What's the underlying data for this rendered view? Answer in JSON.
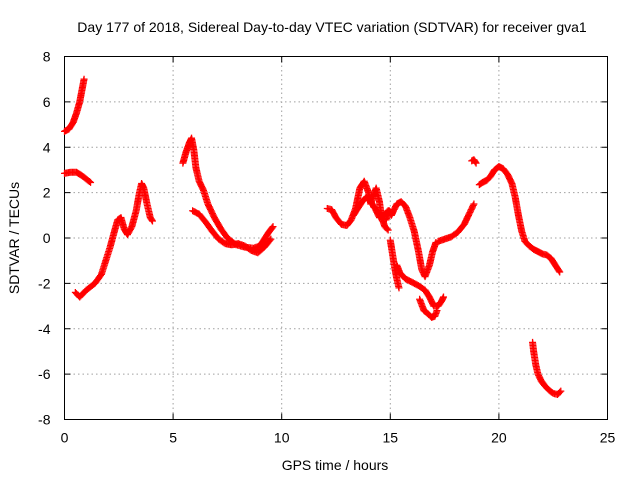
{
  "chart_data": {
    "type": "scatter",
    "title": "Day 177 of 2018, Sidereal Day-to-day VTEC variation (SDTVAR) for receiver gva1",
    "xlabel": "GPS time / hours",
    "ylabel": "SDTVAR / TECUs",
    "xlim": [
      0,
      25
    ],
    "ylim": [
      -8,
      8
    ],
    "xticks": [
      0,
      5,
      10,
      15,
      20,
      25
    ],
    "yticks": [
      -8,
      -6,
      -4,
      -2,
      0,
      2,
      4,
      6,
      8
    ],
    "xtick_labels": [
      "0",
      "5",
      "10",
      "15",
      "20",
      "25"
    ],
    "ytick_labels": [
      "-8",
      "-6",
      "-4",
      "-2",
      "0",
      "2",
      "4",
      "6",
      "8"
    ],
    "grid": true,
    "marker": "plus",
    "color": "#ff0000",
    "series": [
      {
        "name": "s1",
        "points": [
          [
            0.0,
            4.7
          ],
          [
            0.2,
            4.8
          ],
          [
            0.4,
            5.1
          ],
          [
            0.55,
            5.5
          ],
          [
            0.7,
            6.0
          ],
          [
            0.8,
            6.5
          ],
          [
            0.9,
            7.0
          ]
        ]
      },
      {
        "name": "s2",
        "points": [
          [
            0.0,
            2.85
          ],
          [
            0.3,
            2.9
          ],
          [
            0.55,
            2.9
          ],
          [
            0.8,
            2.75
          ],
          [
            1.0,
            2.6
          ],
          [
            1.2,
            2.45
          ]
        ]
      },
      {
        "name": "s3",
        "points": [
          [
            0.5,
            -2.4
          ],
          [
            0.7,
            -2.6
          ],
          [
            1.0,
            -2.3
          ],
          [
            1.4,
            -2.0
          ],
          [
            1.7,
            -1.6
          ],
          [
            1.9,
            -1.0
          ],
          [
            2.1,
            -0.4
          ],
          [
            2.3,
            0.3
          ],
          [
            2.45,
            0.8
          ],
          [
            2.6,
            0.9
          ],
          [
            2.75,
            0.4
          ],
          [
            2.9,
            0.15
          ],
          [
            3.1,
            0.5
          ],
          [
            3.3,
            1.2
          ],
          [
            3.45,
            2.0
          ],
          [
            3.55,
            2.4
          ],
          [
            3.65,
            2.2
          ],
          [
            3.8,
            1.5
          ],
          [
            3.95,
            0.9
          ],
          [
            4.05,
            0.75
          ]
        ]
      },
      {
        "name": "s4",
        "points": [
          [
            5.45,
            3.3
          ],
          [
            5.6,
            3.8
          ],
          [
            5.75,
            4.2
          ],
          [
            5.85,
            4.4
          ],
          [
            5.95,
            3.9
          ],
          [
            6.05,
            3.1
          ],
          [
            6.2,
            2.5
          ],
          [
            6.4,
            2.1
          ],
          [
            6.6,
            1.5
          ],
          [
            6.9,
            0.9
          ],
          [
            7.2,
            0.4
          ],
          [
            7.5,
            0.0
          ],
          [
            7.9,
            -0.3
          ],
          [
            8.3,
            -0.4
          ],
          [
            8.7,
            -0.45
          ],
          [
            9.0,
            -0.35
          ],
          [
            9.2,
            -0.05
          ],
          [
            9.4,
            0.25
          ],
          [
            9.6,
            0.5
          ]
        ]
      },
      {
        "name": "s5",
        "points": [
          [
            5.9,
            1.2
          ],
          [
            6.2,
            1.05
          ],
          [
            6.5,
            0.7
          ],
          [
            6.8,
            0.3
          ],
          [
            7.1,
            -0.05
          ],
          [
            7.4,
            -0.25
          ],
          [
            7.7,
            -0.3
          ],
          [
            8.0,
            -0.25
          ],
          [
            8.3,
            -0.35
          ],
          [
            8.6,
            -0.55
          ],
          [
            8.9,
            -0.65
          ],
          [
            9.2,
            -0.4
          ],
          [
            9.5,
            -0.05
          ]
        ]
      },
      {
        "name": "s6",
        "points": [
          [
            12.1,
            1.3
          ],
          [
            12.3,
            1.25
          ],
          [
            12.5,
            0.9
          ],
          [
            12.75,
            0.6
          ],
          [
            13.0,
            0.55
          ],
          [
            13.2,
            0.8
          ],
          [
            13.4,
            1.3
          ],
          [
            13.6,
            2.2
          ],
          [
            13.8,
            2.5
          ],
          [
            14.0,
            2.0
          ],
          [
            14.1,
            1.5
          ],
          [
            14.2,
            1.8
          ],
          [
            14.35,
            2.2
          ],
          [
            14.5,
            1.6
          ],
          [
            14.6,
            0.9
          ],
          [
            14.75,
            0.5
          ],
          [
            14.9,
            0.35
          ]
        ]
      },
      {
        "name": "s7",
        "points": [
          [
            13.3,
            1.0
          ],
          [
            13.5,
            1.3
          ],
          [
            13.7,
            1.6
          ],
          [
            13.9,
            1.8
          ],
          [
            14.1,
            1.6
          ],
          [
            14.3,
            1.3
          ],
          [
            14.5,
            0.9
          ],
          [
            14.7,
            1.0
          ],
          [
            14.9,
            1.2
          ],
          [
            15.0,
            1.15
          ]
        ]
      },
      {
        "name": "s8",
        "points": [
          [
            15.0,
            -0.1
          ],
          [
            15.1,
            -0.7
          ],
          [
            15.2,
            -1.3
          ],
          [
            15.3,
            -1.8
          ],
          [
            15.4,
            -2.2
          ]
        ]
      },
      {
        "name": "s9",
        "points": [
          [
            15.3,
            -1.2
          ],
          [
            15.45,
            -1.55
          ],
          [
            15.7,
            -1.8
          ],
          [
            16.0,
            -1.95
          ],
          [
            16.3,
            -2.1
          ],
          [
            16.6,
            -2.3
          ],
          [
            16.8,
            -2.6
          ],
          [
            17.0,
            -3.0
          ],
          [
            17.2,
            -3.0
          ],
          [
            17.35,
            -2.8
          ],
          [
            17.45,
            -2.6
          ]
        ]
      },
      {
        "name": "s10",
        "points": [
          [
            14.8,
            0.8
          ],
          [
            14.95,
            1.2
          ],
          [
            15.05,
            1.0
          ],
          [
            15.15,
            1.2
          ],
          [
            15.3,
            1.5
          ],
          [
            15.5,
            1.6
          ],
          [
            15.7,
            1.4
          ],
          [
            15.9,
            0.9
          ],
          [
            16.1,
            0.3
          ],
          [
            16.3,
            -0.6
          ],
          [
            16.45,
            -1.4
          ],
          [
            16.6,
            -1.7
          ],
          [
            16.8,
            -1.2
          ],
          [
            16.95,
            -0.6
          ],
          [
            17.1,
            -0.2
          ]
        ]
      },
      {
        "name": "s11",
        "points": [
          [
            16.35,
            -2.7
          ],
          [
            16.55,
            -3.2
          ],
          [
            16.75,
            -3.35
          ],
          [
            16.9,
            -3.5
          ],
          [
            17.05,
            -3.45
          ],
          [
            17.15,
            -3.2
          ]
        ]
      },
      {
        "name": "s12",
        "points": [
          [
            17.2,
            -0.15
          ],
          [
            17.5,
            -0.05
          ],
          [
            17.8,
            0.05
          ],
          [
            18.1,
            0.25
          ],
          [
            18.4,
            0.6
          ],
          [
            18.6,
            1.0
          ],
          [
            18.85,
            1.5
          ]
        ]
      },
      {
        "name": "s13",
        "points": [
          [
            18.75,
            3.4
          ],
          [
            18.85,
            3.45
          ],
          [
            18.95,
            3.3
          ]
        ]
      },
      {
        "name": "s14",
        "points": [
          [
            19.1,
            2.35
          ],
          [
            19.25,
            2.45
          ],
          [
            19.45,
            2.55
          ],
          [
            19.6,
            2.7
          ],
          [
            19.8,
            3.0
          ],
          [
            20.0,
            3.15
          ],
          [
            20.2,
            3.05
          ],
          [
            20.4,
            2.8
          ],
          [
            20.6,
            2.4
          ],
          [
            20.75,
            1.8
          ],
          [
            20.9,
            1.0
          ],
          [
            21.05,
            0.3
          ],
          [
            21.2,
            -0.15
          ],
          [
            21.4,
            -0.35
          ],
          [
            21.6,
            -0.5
          ],
          [
            21.8,
            -0.6
          ],
          [
            22.0,
            -0.7
          ],
          [
            22.2,
            -0.75
          ],
          [
            22.4,
            -0.9
          ],
          [
            22.6,
            -1.2
          ],
          [
            22.8,
            -1.5
          ]
        ]
      },
      {
        "name": "s15",
        "points": [
          [
            21.55,
            -4.6
          ],
          [
            21.6,
            -5.0
          ],
          [
            21.7,
            -5.6
          ],
          [
            21.8,
            -6.0
          ],
          [
            21.95,
            -6.3
          ],
          [
            22.1,
            -6.5
          ],
          [
            22.3,
            -6.7
          ],
          [
            22.5,
            -6.85
          ],
          [
            22.7,
            -6.9
          ],
          [
            22.85,
            -6.75
          ]
        ]
      }
    ]
  }
}
